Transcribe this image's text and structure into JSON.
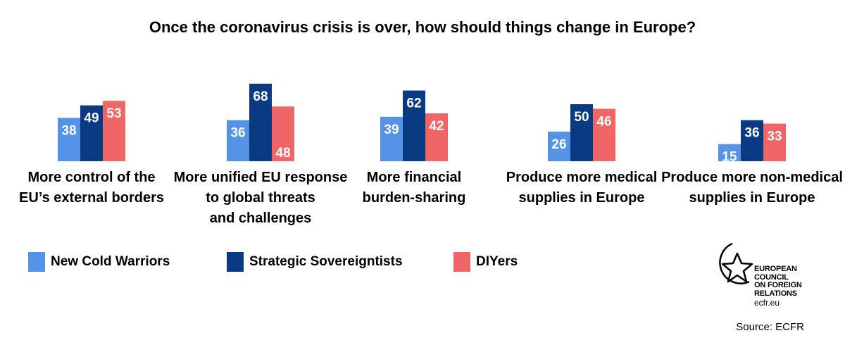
{
  "title": "Once the coronavirus crisis is over, how should things change in Europe?",
  "chart_data": {
    "type": "bar",
    "categories": [
      [
        "More control of the",
        "EU’s external borders"
      ],
      [
        "More unified EU response",
        "to global threats",
        "and challenges"
      ],
      [
        "More financial",
        "burden-sharing"
      ],
      [
        "Produce more medical",
        "supplies in Europe"
      ],
      [
        "Produce more non-medical",
        "supplies in Europe"
      ]
    ],
    "series": [
      {
        "name": "New Cold Warriors",
        "color": "#5593e6",
        "values": [
          38,
          36,
          39,
          26,
          15
        ]
      },
      {
        "name": "Strategic Sovereigntists",
        "color": "#0a3a82",
        "values": [
          49,
          68,
          62,
          50,
          36
        ]
      },
      {
        "name": "DIYers",
        "color": "#f06666",
        "values": [
          53,
          48,
          42,
          46,
          33
        ]
      }
    ],
    "legend_position": "bottom-left",
    "grid": false,
    "ylim": [
      0,
      70
    ]
  },
  "legend": {
    "items": [
      {
        "label": "New Cold Warriors",
        "color": "#5593e6"
      },
      {
        "label": "Strategic Sovereigntists",
        "color": "#0a3a82"
      },
      {
        "label": "DIYers",
        "color": "#f06666"
      }
    ]
  },
  "logo": {
    "lines": [
      "EUROPEAN",
      "COUNCIL",
      "ON FOREIGN",
      "RELATIONS"
    ],
    "url": "ecfr.eu"
  },
  "source": "Source: ECFR"
}
